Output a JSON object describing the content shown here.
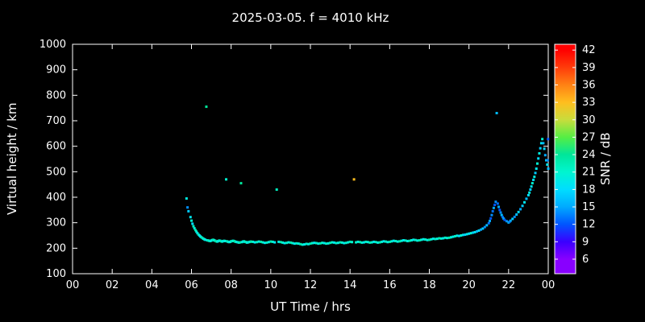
{
  "figure": {
    "title": "2025-03-05. f = 4010 kHz"
  },
  "chart_data": {
    "type": "scatter",
    "title": "2025-03-05. f = 4010 kHz",
    "xlabel": "UT Time / hrs",
    "ylabel": "Virtual height / km",
    "xlim": [
      0,
      24
    ],
    "ylim": [
      100,
      1000
    ],
    "grid": false,
    "background": "#000000",
    "foreground": "#ffffff",
    "x_ticks": [
      {
        "v": 0,
        "label": "00"
      },
      {
        "v": 2,
        "label": "02"
      },
      {
        "v": 4,
        "label": "04"
      },
      {
        "v": 6,
        "label": "06"
      },
      {
        "v": 8,
        "label": "08"
      },
      {
        "v": 10,
        "label": "10"
      },
      {
        "v": 12,
        "label": "12"
      },
      {
        "v": 14,
        "label": "14"
      },
      {
        "v": 16,
        "label": "16"
      },
      {
        "v": 18,
        "label": "18"
      },
      {
        "v": 20,
        "label": "20"
      },
      {
        "v": 22,
        "label": "22"
      },
      {
        "v": 24,
        "label": "00"
      }
    ],
    "y_ticks": [
      100,
      200,
      300,
      400,
      500,
      600,
      700,
      800,
      900,
      1000
    ],
    "colorbar": {
      "label": "SNR / dB",
      "min": 3.5,
      "max": 43,
      "ticks": [
        6,
        9,
        12,
        15,
        18,
        21,
        24,
        27,
        30,
        33,
        36,
        39,
        42
      ],
      "stops": [
        [
          6,
          "#8800ff"
        ],
        [
          9,
          "#3a00ff"
        ],
        [
          12,
          "#0055ff"
        ],
        [
          15,
          "#00aaff"
        ],
        [
          18,
          "#00ddff"
        ],
        [
          21,
          "#00f5d0"
        ],
        [
          24,
          "#00e69a"
        ],
        [
          27,
          "#55ee44"
        ],
        [
          30,
          "#c8dc3c"
        ],
        [
          33,
          "#ffbe1e"
        ],
        [
          36,
          "#ff8214"
        ],
        [
          39,
          "#ff3c0a"
        ],
        [
          42,
          "#ff0000"
        ]
      ]
    },
    "points": [
      [
        5.75,
        395,
        20
      ],
      [
        5.8,
        360,
        14
      ],
      [
        5.85,
        345,
        17
      ],
      [
        5.95,
        322,
        19
      ],
      [
        6.0,
        308,
        21
      ],
      [
        6.05,
        296,
        18
      ],
      [
        6.1,
        286,
        22
      ],
      [
        6.15,
        278,
        20
      ],
      [
        6.2,
        271,
        23
      ],
      [
        6.25,
        265,
        21
      ],
      [
        6.3,
        259,
        19
      ],
      [
        6.35,
        254,
        22
      ],
      [
        6.4,
        250,
        20
      ],
      [
        6.45,
        246,
        18
      ],
      [
        6.5,
        243,
        21
      ],
      [
        6.55,
        240,
        23
      ],
      [
        6.6,
        237,
        20
      ],
      [
        6.65,
        235,
        22
      ],
      [
        6.7,
        233,
        19
      ],
      [
        6.75,
        755,
        24
      ],
      [
        6.8,
        231,
        21
      ],
      [
        6.85,
        230,
        23
      ],
      [
        6.9,
        229,
        20
      ],
      [
        6.95,
        228,
        22
      ],
      [
        7.0,
        230,
        19
      ],
      [
        7.05,
        232,
        21
      ],
      [
        7.1,
        233,
        23
      ],
      [
        7.15,
        231,
        20
      ],
      [
        7.2,
        229,
        22
      ],
      [
        7.25,
        227,
        24
      ],
      [
        7.3,
        226,
        21
      ],
      [
        7.35,
        228,
        19
      ],
      [
        7.4,
        230,
        22
      ],
      [
        7.45,
        229,
        20
      ],
      [
        7.5,
        227,
        23
      ],
      [
        7.55,
        226,
        21
      ],
      [
        7.6,
        228,
        19
      ],
      [
        7.65,
        229,
        22
      ],
      [
        7.7,
        228,
        20
      ],
      [
        7.75,
        470,
        21
      ],
      [
        7.8,
        227,
        23
      ],
      [
        7.85,
        225,
        20
      ],
      [
        7.9,
        224,
        22
      ],
      [
        7.95,
        225,
        19
      ],
      [
        8.0,
        227,
        21
      ],
      [
        8.05,
        228,
        23
      ],
      [
        8.1,
        229,
        20
      ],
      [
        8.15,
        228,
        22
      ],
      [
        8.2,
        226,
        24
      ],
      [
        8.25,
        225,
        21
      ],
      [
        8.3,
        224,
        19
      ],
      [
        8.35,
        223,
        22
      ],
      [
        8.4,
        222,
        20
      ],
      [
        8.45,
        223,
        23
      ],
      [
        8.5,
        455,
        24
      ],
      [
        8.55,
        224,
        21
      ],
      [
        8.6,
        226,
        19
      ],
      [
        8.65,
        227,
        22
      ],
      [
        8.7,
        225,
        20
      ],
      [
        8.75,
        224,
        23
      ],
      [
        8.8,
        222,
        21
      ],
      [
        8.85,
        223,
        19
      ],
      [
        8.9,
        224,
        22
      ],
      [
        8.95,
        225,
        20
      ],
      [
        9.0,
        226,
        23
      ],
      [
        9.1,
        225,
        21
      ],
      [
        9.2,
        223,
        19
      ],
      [
        9.3,
        224,
        22
      ],
      [
        9.4,
        226,
        20
      ],
      [
        9.5,
        225,
        23
      ],
      [
        9.6,
        223,
        21
      ],
      [
        9.7,
        221,
        19
      ],
      [
        9.8,
        222,
        22
      ],
      [
        9.9,
        224,
        20
      ],
      [
        10.0,
        226,
        23
      ],
      [
        10.1,
        225,
        21
      ],
      [
        10.2,
        223,
        19
      ],
      [
        10.3,
        430,
        22
      ],
      [
        10.4,
        225,
        20
      ],
      [
        10.5,
        224,
        23
      ],
      [
        10.6,
        222,
        21
      ],
      [
        10.7,
        220,
        19
      ],
      [
        10.8,
        221,
        22
      ],
      [
        10.9,
        223,
        20
      ],
      [
        11.0,
        222,
        23
      ],
      [
        11.1,
        220,
        21
      ],
      [
        11.2,
        218,
        19
      ],
      [
        11.3,
        219,
        22
      ],
      [
        11.4,
        218,
        20
      ],
      [
        11.5,
        216,
        23
      ],
      [
        11.6,
        214,
        21
      ],
      [
        11.7,
        215,
        19
      ],
      [
        11.8,
        217,
        22
      ],
      [
        11.9,
        216,
        20
      ],
      [
        12.0,
        218,
        23
      ],
      [
        12.1,
        220,
        21
      ],
      [
        12.2,
        221,
        19
      ],
      [
        12.3,
        220,
        22
      ],
      [
        12.4,
        218,
        20
      ],
      [
        12.5,
        219,
        23
      ],
      [
        12.6,
        221,
        21
      ],
      [
        12.7,
        220,
        19
      ],
      [
        12.8,
        218,
        22
      ],
      [
        12.9,
        219,
        20
      ],
      [
        13.0,
        221,
        23
      ],
      [
        13.1,
        223,
        21
      ],
      [
        13.2,
        222,
        19
      ],
      [
        13.3,
        220,
        22
      ],
      [
        13.4,
        221,
        20
      ],
      [
        13.5,
        223,
        23
      ],
      [
        13.6,
        222,
        21
      ],
      [
        13.7,
        220,
        19
      ],
      [
        13.8,
        221,
        22
      ],
      [
        13.9,
        223,
        20
      ],
      [
        14.0,
        225,
        23
      ],
      [
        14.1,
        224,
        21
      ],
      [
        14.2,
        470,
        33
      ],
      [
        14.3,
        223,
        22
      ],
      [
        14.4,
        225,
        20
      ],
      [
        14.5,
        224,
        23
      ],
      [
        14.6,
        222,
        21
      ],
      [
        14.7,
        223,
        19
      ],
      [
        14.8,
        225,
        22
      ],
      [
        14.9,
        224,
        20
      ],
      [
        15.0,
        222,
        23
      ],
      [
        15.1,
        223,
        21
      ],
      [
        15.2,
        225,
        19
      ],
      [
        15.3,
        224,
        22
      ],
      [
        15.4,
        222,
        20
      ],
      [
        15.5,
        223,
        23
      ],
      [
        15.6,
        225,
        21
      ],
      [
        15.7,
        227,
        19
      ],
      [
        15.8,
        226,
        22
      ],
      [
        15.9,
        224,
        20
      ],
      [
        16.0,
        225,
        23
      ],
      [
        16.1,
        227,
        21
      ],
      [
        16.2,
        229,
        19
      ],
      [
        16.3,
        228,
        22
      ],
      [
        16.4,
        226,
        20
      ],
      [
        16.5,
        227,
        23
      ],
      [
        16.6,
        229,
        21
      ],
      [
        16.7,
        231,
        19
      ],
      [
        16.8,
        230,
        22
      ],
      [
        16.9,
        228,
        20
      ],
      [
        17.0,
        229,
        23
      ],
      [
        17.1,
        231,
        21
      ],
      [
        17.2,
        233,
        19
      ],
      [
        17.3,
        232,
        22
      ],
      [
        17.4,
        230,
        20
      ],
      [
        17.5,
        231,
        23
      ],
      [
        17.6,
        233,
        21
      ],
      [
        17.7,
        235,
        19
      ],
      [
        17.8,
        234,
        22
      ],
      [
        17.9,
        232,
        20
      ],
      [
        18.0,
        233,
        23
      ],
      [
        18.1,
        235,
        21
      ],
      [
        18.2,
        237,
        19
      ],
      [
        18.3,
        236,
        22
      ],
      [
        18.4,
        237,
        20
      ],
      [
        18.5,
        239,
        23
      ],
      [
        18.6,
        238,
        21
      ],
      [
        18.7,
        239,
        19
      ],
      [
        18.8,
        241,
        22
      ],
      [
        18.9,
        240,
        20
      ],
      [
        19.0,
        241,
        23
      ],
      [
        19.1,
        243,
        21
      ],
      [
        19.2,
        245,
        19
      ],
      [
        19.3,
        247,
        22
      ],
      [
        19.4,
        249,
        20
      ],
      [
        19.5,
        248,
        18
      ],
      [
        19.6,
        250,
        21
      ],
      [
        19.7,
        252,
        19
      ],
      [
        19.8,
        253,
        17
      ],
      [
        19.9,
        255,
        20
      ],
      [
        20.0,
        257,
        18
      ],
      [
        20.1,
        259,
        21
      ],
      [
        20.2,
        261,
        17
      ],
      [
        20.3,
        263,
        19
      ],
      [
        20.4,
        266,
        16
      ],
      [
        20.5,
        269,
        18
      ],
      [
        20.6,
        273,
        15
      ],
      [
        20.7,
        277,
        17
      ],
      [
        20.8,
        283,
        14
      ],
      [
        20.9,
        290,
        16
      ],
      [
        21.0,
        298,
        13
      ],
      [
        21.05,
        307,
        15
      ],
      [
        21.1,
        317,
        12
      ],
      [
        21.15,
        330,
        14
      ],
      [
        21.2,
        345,
        13
      ],
      [
        21.25,
        358,
        15
      ],
      [
        21.3,
        370,
        12
      ],
      [
        21.35,
        382,
        14
      ],
      [
        21.4,
        730,
        16
      ],
      [
        21.45,
        375,
        13
      ],
      [
        21.5,
        362,
        15
      ],
      [
        21.55,
        350,
        12
      ],
      [
        21.6,
        340,
        14
      ],
      [
        21.65,
        330,
        16
      ],
      [
        21.7,
        322,
        13
      ],
      [
        21.75,
        316,
        15
      ],
      [
        21.8,
        311,
        12
      ],
      [
        21.9,
        306,
        14
      ],
      [
        22.0,
        301,
        16
      ],
      [
        22.05,
        304,
        13
      ],
      [
        22.1,
        308,
        15
      ],
      [
        22.2,
        315,
        17
      ],
      [
        22.3,
        323,
        14
      ],
      [
        22.4,
        332,
        16
      ],
      [
        22.5,
        342,
        18
      ],
      [
        22.6,
        353,
        15
      ],
      [
        22.7,
        366,
        17
      ],
      [
        22.8,
        380,
        19
      ],
      [
        22.9,
        394,
        16
      ],
      [
        23.0,
        408,
        18
      ],
      [
        23.05,
        418,
        20
      ],
      [
        23.1,
        430,
        17
      ],
      [
        23.15,
        442,
        19
      ],
      [
        23.2,
        455,
        21
      ],
      [
        23.25,
        468,
        18
      ],
      [
        23.3,
        480,
        20
      ],
      [
        23.35,
        495,
        17
      ],
      [
        23.4,
        512,
        19
      ],
      [
        23.45,
        532,
        21
      ],
      [
        23.5,
        552,
        18
      ],
      [
        23.55,
        572,
        20
      ],
      [
        23.6,
        592,
        17
      ],
      [
        23.65,
        612,
        19
      ],
      [
        23.7,
        628,
        21
      ],
      [
        23.75,
        612,
        16
      ],
      [
        23.8,
        590,
        18
      ],
      [
        23.85,
        565,
        15
      ],
      [
        23.9,
        545,
        17
      ],
      [
        23.95,
        528,
        19
      ],
      [
        23.97,
        545,
        14
      ],
      [
        23.99,
        628,
        12
      ],
      [
        24.0,
        512,
        16
      ]
    ]
  }
}
